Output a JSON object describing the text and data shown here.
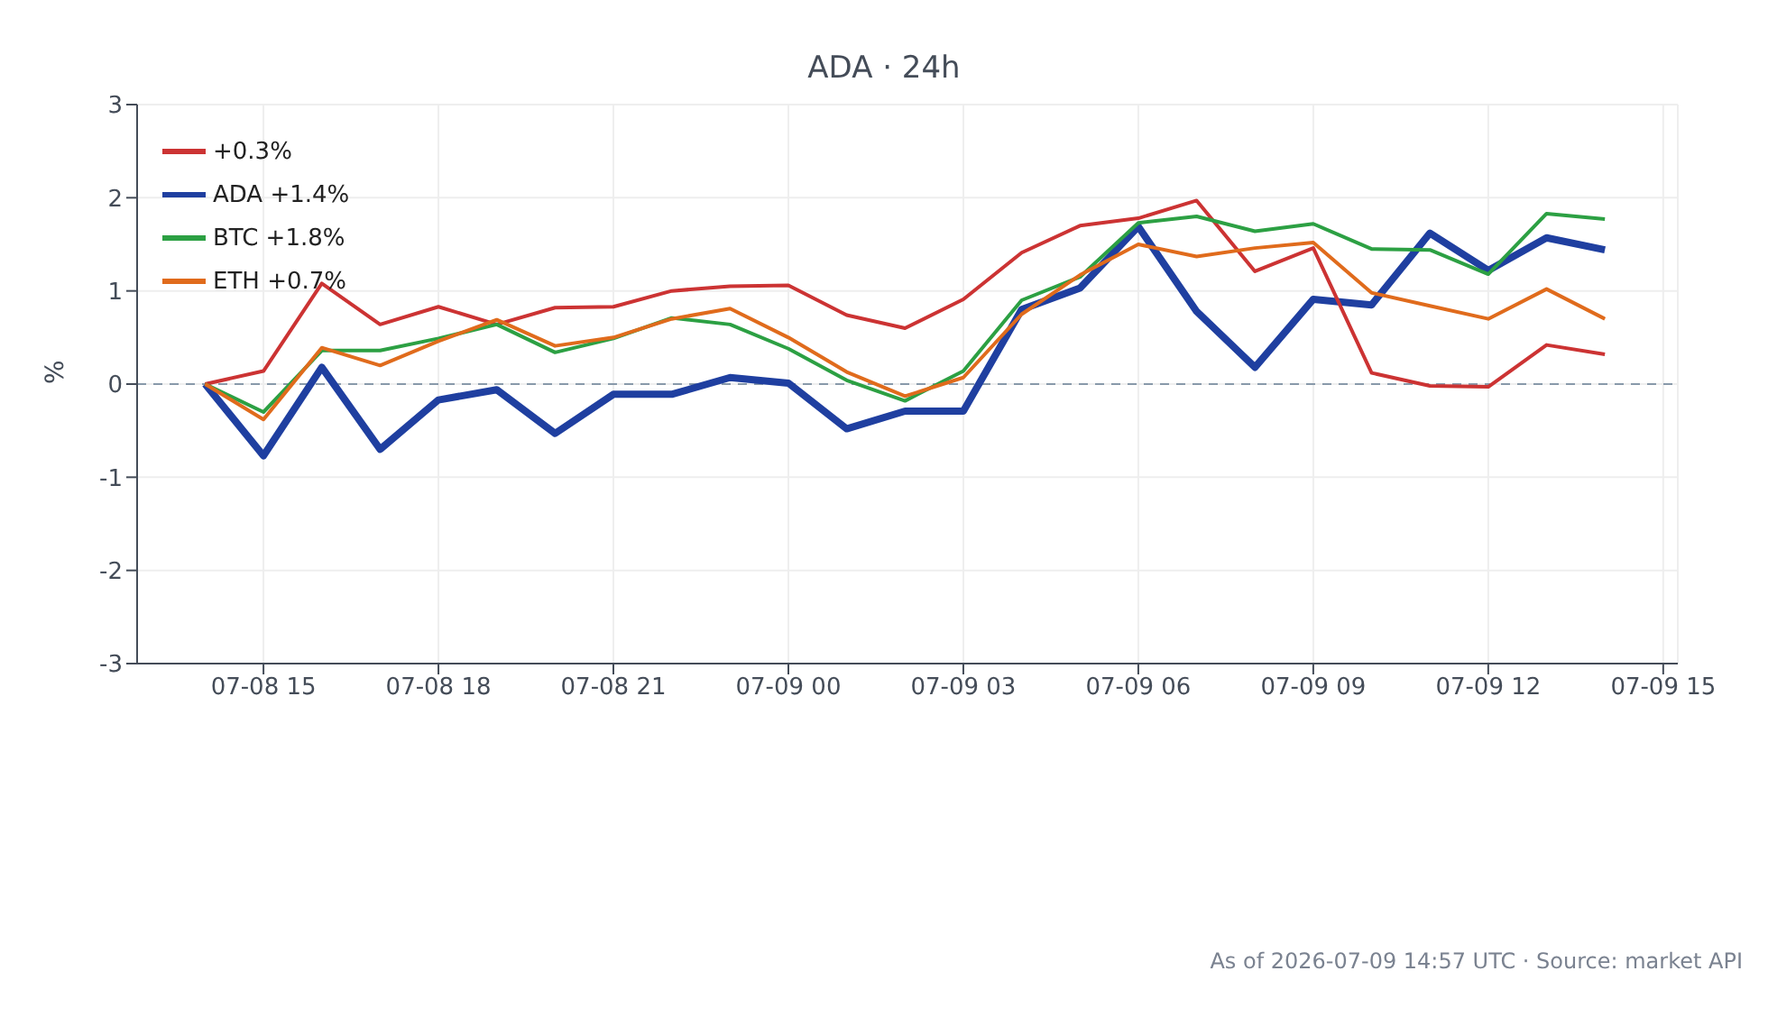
{
  "chart_data": {
    "type": "line",
    "title": "ADA · 24h",
    "ylabel": "%",
    "x": [
      "2026-07-08T14:00",
      "2026-07-08T15:00",
      "2026-07-08T16:00",
      "2026-07-08T17:00",
      "2026-07-08T18:00",
      "2026-07-08T19:00",
      "2026-07-08T20:00",
      "2026-07-08T21:00",
      "2026-07-08T22:00",
      "2026-07-08T23:00",
      "2026-07-09T00:00",
      "2026-07-09T01:00",
      "2026-07-09T02:00",
      "2026-07-09T03:00",
      "2026-07-09T04:00",
      "2026-07-09T05:00",
      "2026-07-09T06:00",
      "2026-07-09T07:00",
      "2026-07-09T08:00",
      "2026-07-09T09:00",
      "2026-07-09T10:00",
      "2026-07-09T11:00",
      "2026-07-09T12:00",
      "2026-07-09T13:00",
      "2026-07-09T14:00"
    ],
    "series": [
      {
        "name": "ADA +1.4%",
        "color": "#1f3fa0",
        "values": [
          0,
          -0.77,
          0.18,
          -0.7,
          -0.17,
          -0.06,
          -0.53,
          -0.11,
          -0.11,
          0.07,
          0.01,
          -0.48,
          -0.29,
          -0.29,
          0.8,
          1.03,
          1.69,
          0.78,
          0.18,
          0.91,
          0.85,
          1.62,
          1.22,
          1.57,
          1.44
        ]
      },
      {
        "name": "+0.3%",
        "color": "#cc3333",
        "values": [
          0,
          0.14,
          1.08,
          0.64,
          0.83,
          0.64,
          0.82,
          0.83,
          1.0,
          1.05,
          1.06,
          0.74,
          0.6,
          0.91,
          1.41,
          1.7,
          1.78,
          1.97,
          1.21,
          1.46,
          0.12,
          -0.02,
          -0.03,
          0.42,
          0.32
        ]
      },
      {
        "name": "BTC +1.8%",
        "color": "#2ca043",
        "values": [
          0,
          -0.3,
          0.36,
          0.36,
          0.49,
          0.64,
          0.34,
          0.49,
          0.71,
          0.64,
          0.38,
          0.04,
          -0.18,
          0.14,
          0.9,
          1.15,
          1.73,
          1.8,
          1.64,
          1.72,
          1.45,
          1.44,
          1.18,
          1.83,
          1.77
        ]
      },
      {
        "name": "ETH +0.7%",
        "color": "#e06b1c",
        "values": [
          0,
          -0.38,
          0.39,
          0.2,
          0.46,
          0.69,
          0.41,
          0.5,
          0.7,
          0.81,
          0.5,
          0.13,
          -0.13,
          0.07,
          0.75,
          1.17,
          1.5,
          1.37,
          1.46,
          1.52,
          0.98,
          0.84,
          0.7,
          1.02,
          0.7
        ]
      }
    ],
    "xlim": [
      "2026-07-08T12:50",
      "2026-07-09T15:15"
    ],
    "xticks": [
      {
        "value": "2026-07-08T15:00",
        "label": "07-08 15"
      },
      {
        "value": "2026-07-08T18:00",
        "label": "07-08 18"
      },
      {
        "value": "2026-07-08T21:00",
        "label": "07-08 21"
      },
      {
        "value": "2026-07-09T00:00",
        "label": "07-09 00"
      },
      {
        "value": "2026-07-09T03:00",
        "label": "07-09 03"
      },
      {
        "value": "2026-07-09T06:00",
        "label": "07-09 06"
      },
      {
        "value": "2026-07-09T09:00",
        "label": "07-09 09"
      },
      {
        "value": "2026-07-09T12:00",
        "label": "07-09 12"
      },
      {
        "value": "2026-07-09T15:00",
        "label": "07-09 15"
      }
    ],
    "ylim": [
      -3,
      3
    ],
    "yticks": [
      -3,
      -2,
      -1,
      0,
      1,
      2,
      3
    ],
    "ref_lines": [
      {
        "axis": "y",
        "value": 0,
        "color": "#8899aa",
        "line_style": "dashed"
      }
    ],
    "grid": true,
    "legend": "top left",
    "marker": "none",
    "line_style": "solid",
    "annotations": [
      "As of 2026-07-09 14:57 UTC · Source: market API"
    ]
  }
}
